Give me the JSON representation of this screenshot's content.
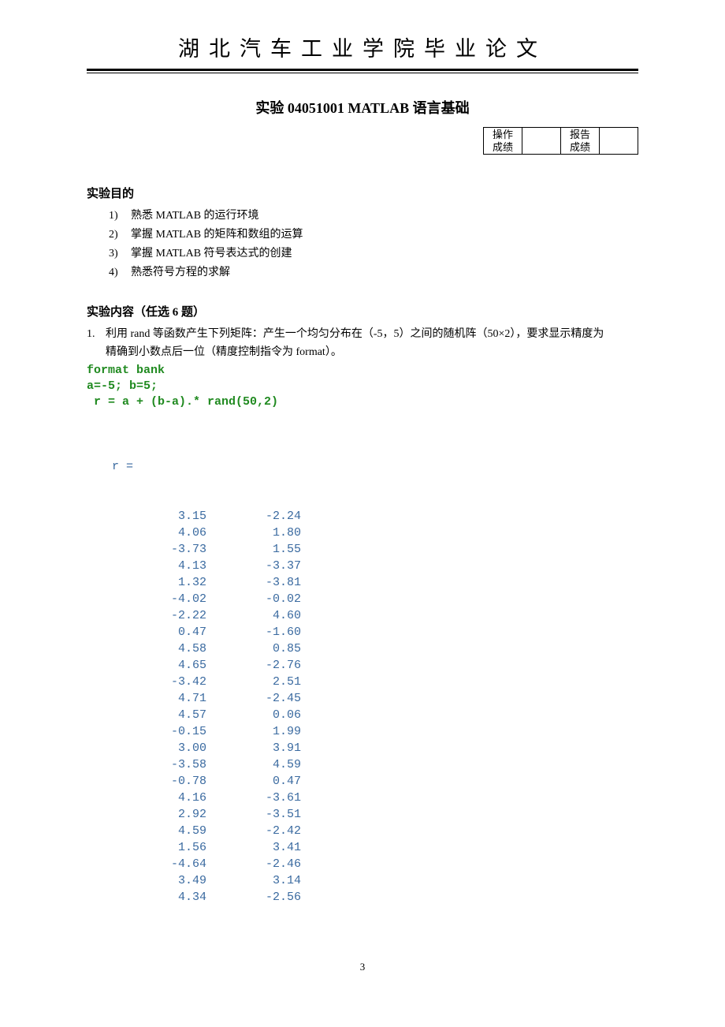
{
  "header": {
    "title": "湖北汽车工业学院毕业论文"
  },
  "experiment": {
    "title": "实验 04051001 MATLAB 语言基础"
  },
  "score": {
    "op_label_1": "操作",
    "op_label_2": "成绩",
    "rep_label_1": "报告",
    "rep_label_2": "成绩",
    "op_value": "",
    "rep_value": ""
  },
  "sections": {
    "purpose_heading": "实验目的",
    "content_heading": "实验内容（任选 6 题）"
  },
  "objectives": [
    {
      "num": "1)",
      "text": "熟悉 MATLAB 的运行环境"
    },
    {
      "num": "2)",
      "text": "掌握 MATLAB 的矩阵和数组的运算"
    },
    {
      "num": "3)",
      "text": "掌握 MATLAB 符号表达式的创建"
    },
    {
      "num": "4)",
      "text": "熟悉符号方程的求解"
    }
  ],
  "question": {
    "num": "1.",
    "text": "利用 rand 等函数产生下列矩阵：产生一个均匀分布在（-5，5）之间的随机阵（50×2），要求显示精度为精确到小数点后一位（精度控制指令为 format）。"
  },
  "code": {
    "line1": "format bank",
    "line2": "a=-5; b=5;",
    "line3": " r = a + (b-a).* rand(50,2)"
  },
  "output": {
    "var": "r =",
    "rows": [
      [
        "3.15",
        "-2.24"
      ],
      [
        "4.06",
        "1.80"
      ],
      [
        "-3.73",
        "1.55"
      ],
      [
        "4.13",
        "-3.37"
      ],
      [
        "1.32",
        "-3.81"
      ],
      [
        "-4.02",
        "-0.02"
      ],
      [
        "-2.22",
        "4.60"
      ],
      [
        "0.47",
        "-1.60"
      ],
      [
        "4.58",
        "0.85"
      ],
      [
        "4.65",
        "-2.76"
      ],
      [
        "-3.42",
        "2.51"
      ],
      [
        "4.71",
        "-2.45"
      ],
      [
        "4.57",
        "0.06"
      ],
      [
        "-0.15",
        "1.99"
      ],
      [
        "3.00",
        "3.91"
      ],
      [
        "-3.58",
        "4.59"
      ],
      [
        "-0.78",
        "0.47"
      ],
      [
        "4.16",
        "-3.61"
      ],
      [
        "2.92",
        "-3.51"
      ],
      [
        "4.59",
        "-2.42"
      ],
      [
        "1.56",
        "3.41"
      ],
      [
        "-4.64",
        "-2.46"
      ],
      [
        "3.49",
        "3.14"
      ],
      [
        "4.34",
        "-2.56"
      ]
    ]
  },
  "page_number": "3"
}
